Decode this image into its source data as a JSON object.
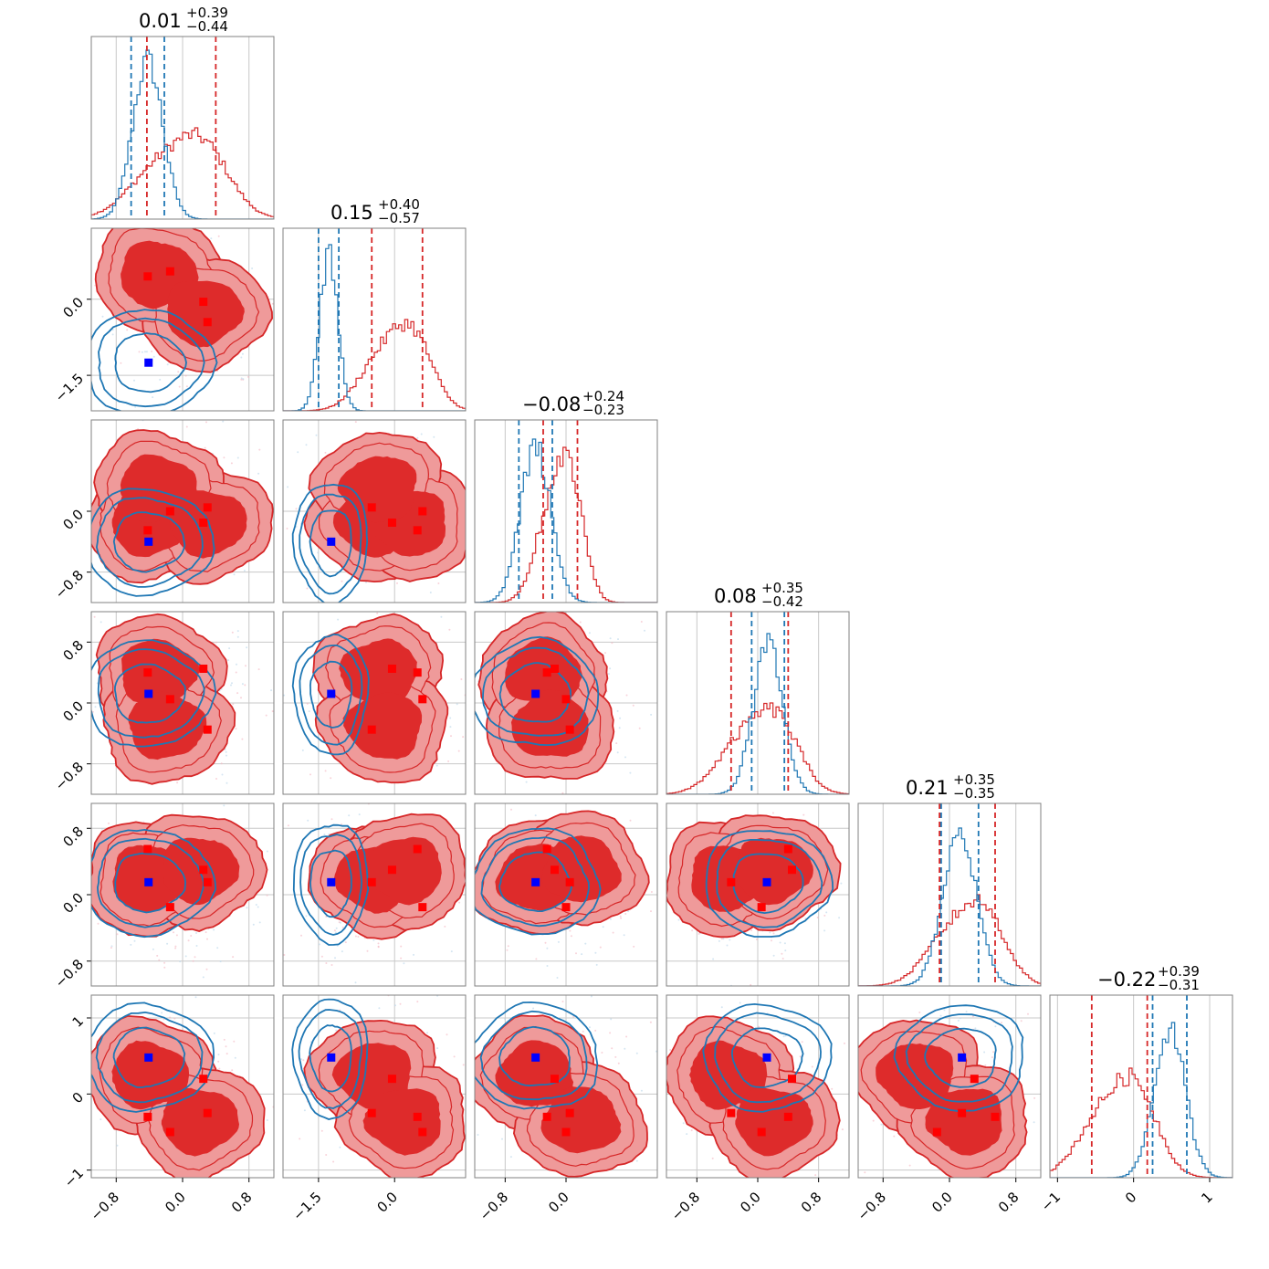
{
  "chart_data": {
    "type": "corner",
    "n_params": 6,
    "series": [
      {
        "color": "#d62728",
        "dark": "#de2b2b",
        "light": "#ef9a9a"
      },
      {
        "color": "#1f77b4"
      }
    ],
    "titles": [
      {
        "value": "0.01",
        "plus": "+0.39",
        "minus": "−0.44"
      },
      {
        "value": "0.15",
        "plus": "+0.40",
        "minus": "−0.57"
      },
      {
        "value": "−0.08",
        "plus": "+0.24",
        "minus": "−0.23"
      },
      {
        "value": "0.08",
        "plus": "+0.35",
        "minus": "−0.42"
      },
      {
        "value": "0.21",
        "plus": "+0.35",
        "minus": "−0.35"
      },
      {
        "value": "−0.22",
        "plus": "+0.39",
        "minus": "−0.31"
      }
    ],
    "ranges": [
      [
        -1.1,
        1.1
      ],
      [
        -2.2,
        1.4
      ],
      [
        -1.2,
        1.2
      ],
      [
        -1.2,
        1.2
      ],
      [
        -1.1,
        1.1
      ],
      [
        -1.1,
        1.3
      ]
    ],
    "x_ticks": [
      {
        "values": [
          -0.8,
          0.0,
          0.8
        ],
        "labels": [
          "−0.8",
          "0.0",
          "0.8"
        ]
      },
      {
        "values": [
          -1.5,
          0.0
        ],
        "labels": [
          "−1.5",
          "0.0"
        ]
      },
      {
        "values": [
          -0.8,
          0.0
        ],
        "labels": [
          "−0.8",
          "0.0"
        ]
      },
      {
        "values": [
          -0.8,
          0.0,
          0.8
        ],
        "labels": [
          "−0.8",
          "0.0",
          "0.8"
        ]
      },
      {
        "values": [
          -0.8,
          0.0,
          0.8
        ],
        "labels": [
          "−0.8",
          "0.0",
          "0.8"
        ]
      },
      {
        "values": [
          -1,
          0,
          1
        ],
        "labels": [
          "−1",
          "0",
          "1"
        ]
      }
    ],
    "y_ticks": [
      null,
      {
        "values": [
          -1.5,
          0.0
        ],
        "labels": [
          "−1.5",
          "0.0"
        ]
      },
      {
        "values": [
          -0.8,
          0.0
        ],
        "labels": [
          "−0.8",
          "0.0"
        ]
      },
      {
        "values": [
          -0.8,
          0.0,
          0.8
        ],
        "labels": [
          "−0.8",
          "0.0",
          "0.8"
        ]
      },
      {
        "values": [
          -0.8,
          0.0,
          0.8
        ],
        "labels": [
          "−0.8",
          "0.0",
          "0.8"
        ]
      },
      {
        "values": [
          -1,
          0,
          1
        ],
        "labels": [
          "−1",
          "0",
          "1"
        ]
      }
    ],
    "red_quantiles": [
      [
        -0.43,
        0.4
      ],
      [
        -0.45,
        0.55
      ],
      [
        -0.3,
        0.15
      ],
      [
        -0.35,
        0.4
      ],
      [
        -0.12,
        0.55
      ],
      [
        -0.55,
        0.18
      ]
    ],
    "blue_quantiles": [
      [
        -0.62,
        -0.22
      ],
      [
        -1.5,
        -1.1
      ],
      [
        -0.62,
        -0.18
      ],
      [
        -0.08,
        0.35
      ],
      [
        -0.1,
        0.35
      ],
      [
        0.25,
        0.7
      ]
    ],
    "markers": {
      "red_points": [
        [
          -0.42,
          0.45,
          -0.25,
          0.4,
          0.55,
          -0.3
        ],
        [
          -0.15,
          0.55,
          0.0,
          0.05,
          -0.15,
          -0.5
        ],
        [
          0.25,
          -0.05,
          -0.15,
          0.45,
          0.3,
          0.2
        ],
        [
          0.3,
          -0.45,
          0.05,
          -0.35,
          0.15,
          -0.25
        ]
      ],
      "blue_point": [
        -0.41,
        -1.25,
        -0.4,
        0.12,
        0.15,
        0.48
      ]
    },
    "contour_modes": {
      "red": [
        [
          [
            -0.3,
            0.5
          ],
          [
            0.25,
            -0.25
          ]
        ],
        [
          [
            -0.4,
            -0.15
          ],
          [
            0.3,
            -0.15
          ],
          [
            -0.3,
            0.3
          ]
        ],
        [
          [
            -0.3,
            0.4
          ],
          [
            -0.2,
            -0.3
          ]
        ],
        [
          [
            -0.4,
            0.2
          ],
          [
            0.2,
            0.3
          ]
        ],
        [
          [
            -0.4,
            0.25
          ],
          [
            0.2,
            -0.35
          ]
        ]
      ],
      "blue": [
        -0.4,
        -1.25,
        -0.35,
        0.1,
        0.15,
        0.45
      ]
    }
  }
}
